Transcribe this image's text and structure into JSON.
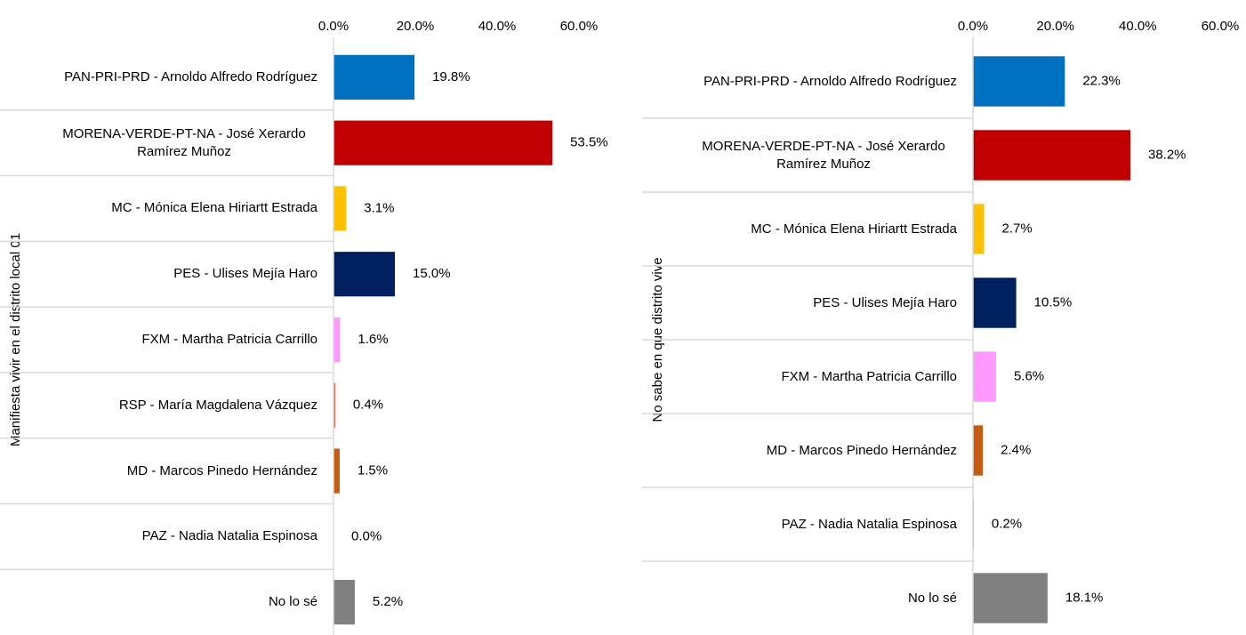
{
  "chart_data": [
    {
      "type": "bar",
      "orientation": "horizontal",
      "y_label": "Manifiesta vivir en el distrito local 01",
      "categories": [
        "PAN-PRI-PRD - Arnoldo Alfredo Rodríguez",
        "MORENA-VERDE-PT-NA - José Xerardo Ramírez Muñoz",
        "MC - Mónica Elena Hiriartt Estrada",
        "PES - Ulises Mejía Haro",
        "FXM - Martha Patricia Carrillo",
        "RSP - María Magdalena Vázquez",
        "MD - Marcos Pinedo Hernández",
        "PAZ - Nadia Natalia Espinosa",
        "No lo sé"
      ],
      "values": [
        19.8,
        53.5,
        3.1,
        15.0,
        1.6,
        0.4,
        1.5,
        0.0,
        5.2
      ],
      "value_labels": [
        "19.8%",
        "53.5%",
        "3.1%",
        "15.0%",
        "1.6%",
        "0.4%",
        "1.5%",
        "0.0%",
        "5.2%"
      ],
      "colors": [
        "#0070c0",
        "#c00000",
        "#ffc000",
        "#002060",
        "#ff99ff",
        "#e74c3c",
        "#c55a11",
        "#7f7f7f",
        "#808080"
      ],
      "xlim": [
        0,
        60
      ],
      "xticks": [
        {
          "value": 0,
          "label": "0.0%"
        },
        {
          "value": 20,
          "label": "20.0%"
        },
        {
          "value": 40,
          "label": "40.0%"
        },
        {
          "value": 60,
          "label": "60.0%"
        }
      ]
    },
    {
      "type": "bar",
      "orientation": "horizontal",
      "y_label": "No sabe en que distrito vive",
      "categories": [
        "PAN-PRI-PRD - Arnoldo Alfredo Rodríguez",
        "MORENA-VERDE-PT-NA - José Xerardo Ramírez Muñoz",
        "MC - Mónica Elena Hiriartt Estrada",
        "PES - Ulises Mejía Haro",
        "FXM - Martha Patricia Carrillo",
        "MD - Marcos Pinedo Hernández",
        "PAZ - Nadia Natalia Espinosa",
        "No lo sé"
      ],
      "values": [
        22.3,
        38.2,
        2.7,
        10.5,
        5.6,
        2.4,
        0.2,
        18.1
      ],
      "value_labels": [
        "22.3%",
        "38.2%",
        "2.7%",
        "10.5%",
        "5.6%",
        "2.4%",
        "0.2%",
        "18.1%"
      ],
      "colors": [
        "#0070c0",
        "#c00000",
        "#ffc000",
        "#002060",
        "#ff99ff",
        "#c55a11",
        "#7f7f7f",
        "#808080"
      ],
      "xlim": [
        0,
        60
      ],
      "xticks": [
        {
          "value": 0,
          "label": "0.0%"
        },
        {
          "value": 20,
          "label": "20.0%"
        },
        {
          "value": 40,
          "label": "40.0%"
        },
        {
          "value": 60,
          "label": "60.0%"
        }
      ]
    }
  ]
}
